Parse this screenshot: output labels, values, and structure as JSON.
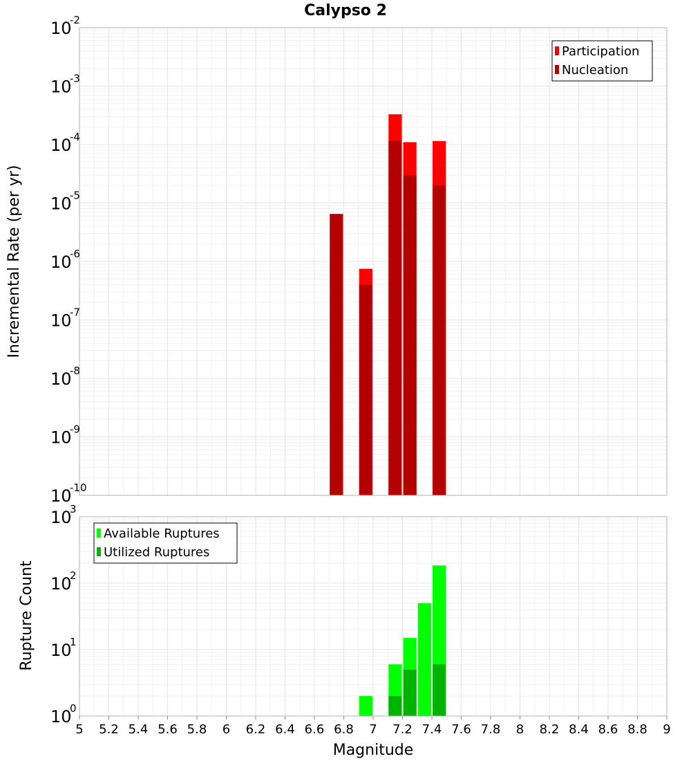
{
  "title": "Calypso 2",
  "chart_data": [
    {
      "type": "bar",
      "panel": "top",
      "title": "Calypso 2",
      "ylabel": "Incremental Rate (per yr)",
      "xlabel": "",
      "yscale": "log",
      "ylim_exp": [
        -10,
        -2
      ],
      "xlim": [
        5,
        9
      ],
      "bar_width": 0.09,
      "legend_position": "top-right",
      "series": [
        {
          "name": "Participation",
          "color": "#ff0000",
          "x": [
            6.75,
            6.95,
            7.15,
            7.25,
            7.45
          ],
          "values": [
            6.5e-06,
            7.5e-07,
            0.00033,
            0.00011,
            0.000115
          ]
        },
        {
          "name": "Nucleation",
          "color": "#b30000",
          "x": [
            6.75,
            6.95,
            7.15,
            7.25,
            7.45
          ],
          "values": [
            6.5e-06,
            4e-07,
            0.000115,
            3e-05,
            2e-05
          ]
        }
      ]
    },
    {
      "type": "bar",
      "panel": "bottom",
      "ylabel": "Rupture Count",
      "xlabel": "Magnitude",
      "yscale": "log",
      "ylim_exp": [
        0,
        3
      ],
      "xlim": [
        5,
        9
      ],
      "bar_width": 0.09,
      "legend_position": "top-left",
      "series": [
        {
          "name": "Available Ruptures",
          "color": "#00ff00",
          "x": [
            6.75,
            6.95,
            7.15,
            7.25,
            7.35,
            7.45
          ],
          "values": [
            1,
            2,
            6,
            15,
            50,
            185
          ]
        },
        {
          "name": "Utilized Ruptures",
          "color": "#00b300",
          "x": [
            6.75,
            6.95,
            7.15,
            7.25,
            7.35,
            7.45
          ],
          "values": [
            1,
            1,
            2,
            5,
            0,
            6
          ]
        }
      ],
      "xticks": [
        "5",
        "5.2",
        "5.4",
        "5.6",
        "5.8",
        "6",
        "6.2",
        "6.4",
        "6.6",
        "6.8",
        "7",
        "7.2",
        "7.4",
        "7.6",
        "7.8",
        "8",
        "8.2",
        "8.4",
        "8.6",
        "8.8",
        "9"
      ]
    }
  ]
}
